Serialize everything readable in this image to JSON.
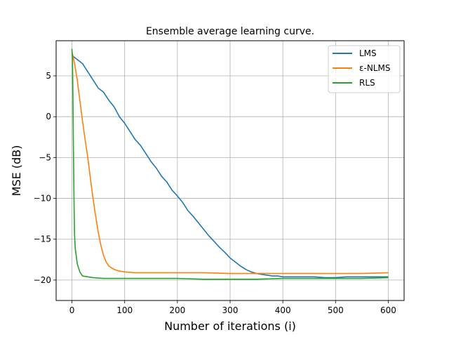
{
  "chart_data": {
    "type": "line",
    "title": "Ensemble average learning curve.",
    "xlabel": "Number of iterations (i)",
    "ylabel": "MSE (dB)",
    "xlim": [
      -30,
      630
    ],
    "ylim": [
      -22.5,
      9.3
    ],
    "xticks": [
      0,
      100,
      200,
      300,
      400,
      500,
      600
    ],
    "yticks": [
      -20,
      -15,
      -10,
      -5,
      0,
      5
    ],
    "xtick_labels": [
      "0",
      "100",
      "200",
      "300",
      "400",
      "500",
      "600"
    ],
    "ytick_labels": [
      "−20",
      "−15",
      "−10",
      "−5",
      "0",
      "5"
    ],
    "grid": true,
    "legend_position": "top-right",
    "series": [
      {
        "name": "LMS",
        "color": "#1f77b4",
        "x": [
          0,
          10,
          20,
          30,
          40,
          50,
          60,
          70,
          80,
          90,
          100,
          110,
          120,
          130,
          140,
          150,
          160,
          170,
          180,
          190,
          200,
          210,
          220,
          230,
          240,
          250,
          260,
          270,
          280,
          290,
          300,
          310,
          320,
          330,
          340,
          350,
          360,
          370,
          380,
          390,
          400,
          420,
          440,
          460,
          480,
          500,
          520,
          540,
          560,
          580,
          600
        ],
        "y": [
          7.5,
          7.0,
          6.5,
          5.5,
          4.5,
          3.5,
          3.0,
          2.0,
          1.2,
          0.0,
          -0.8,
          -1.8,
          -2.8,
          -3.5,
          -4.5,
          -5.5,
          -6.3,
          -7.3,
          -8.0,
          -9.0,
          -9.7,
          -10.5,
          -11.5,
          -12.2,
          -13.0,
          -13.8,
          -14.6,
          -15.3,
          -16.0,
          -16.6,
          -17.3,
          -17.8,
          -18.3,
          -18.7,
          -19.0,
          -19.2,
          -19.3,
          -19.4,
          -19.5,
          -19.5,
          -19.6,
          -19.6,
          -19.6,
          -19.6,
          -19.7,
          -19.7,
          -19.6,
          -19.6,
          -19.6,
          -19.6,
          -19.6
        ]
      },
      {
        "name": "ε-NLMS",
        "color": "#ff7f0e",
        "x": [
          0,
          5,
          10,
          15,
          20,
          25,
          30,
          35,
          40,
          45,
          50,
          55,
          60,
          65,
          70,
          80,
          90,
          100,
          120,
          150,
          200,
          250,
          300,
          350,
          400,
          450,
          500,
          550,
          600
        ],
        "y": [
          8.0,
          6.5,
          4.5,
          2.0,
          -0.5,
          -2.8,
          -5.0,
          -7.5,
          -10.0,
          -12.2,
          -14.2,
          -15.8,
          -17.0,
          -17.8,
          -18.3,
          -18.7,
          -18.9,
          -19.0,
          -19.1,
          -19.1,
          -19.1,
          -19.1,
          -19.2,
          -19.2,
          -19.2,
          -19.2,
          -19.2,
          -19.2,
          -19.1
        ]
      },
      {
        "name": "RLS",
        "color": "#2ca02c",
        "x": [
          0,
          1,
          2,
          3,
          4,
          5,
          6,
          8,
          10,
          15,
          20,
          30,
          40,
          60,
          80,
          100,
          150,
          200,
          250,
          300,
          350,
          400,
          450,
          500,
          550,
          600
        ],
        "y": [
          8.3,
          7.0,
          2.0,
          -5.0,
          -11.0,
          -14.5,
          -16.0,
          -17.0,
          -18.0,
          -19.0,
          -19.5,
          -19.6,
          -19.7,
          -19.8,
          -19.8,
          -19.8,
          -19.8,
          -19.8,
          -19.9,
          -19.9,
          -19.9,
          -19.8,
          -19.8,
          -19.8,
          -19.8,
          -19.7
        ]
      }
    ]
  }
}
